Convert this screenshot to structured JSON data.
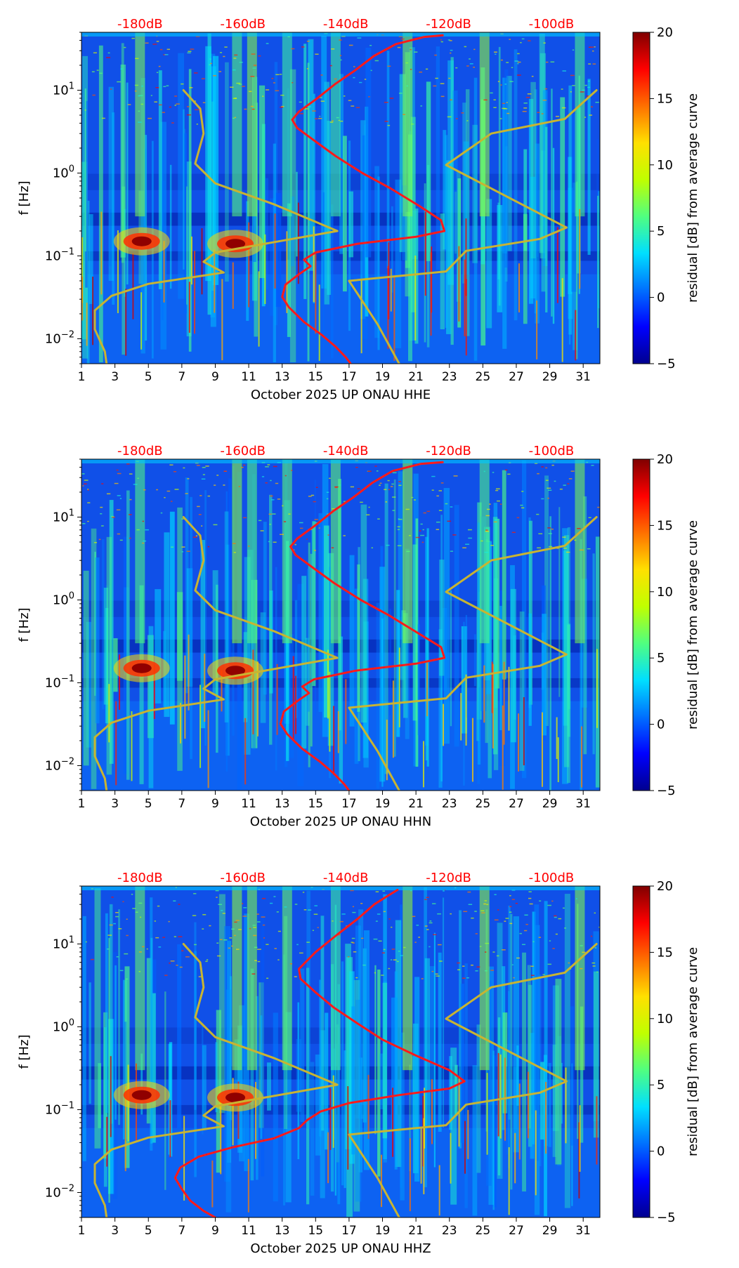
{
  "colors": {
    "cmap": [
      "#00008f",
      "#0000ff",
      "#0070ff",
      "#00dfff",
      "#50ff80",
      "#c0ff00",
      "#ffe000",
      "#ff7000",
      "#ff0000",
      "#800000"
    ],
    "background": "#1050e8",
    "median_curve": "#ff1a1a",
    "noise_model": "#c8b432",
    "top_labels": "#ff0000"
  },
  "chart_data": [
    {
      "type": "heatmap",
      "title": "",
      "xlabel": "October 2025 UP ONAU  HHE",
      "ylabel": "f [Hz]",
      "x_ticks": [
        "1",
        "3",
        "5",
        "7",
        "9",
        "11",
        "13",
        "15",
        "17",
        "19",
        "21",
        "23",
        "25",
        "27",
        "29",
        "31"
      ],
      "x_range_days": [
        1,
        32
      ],
      "y_scale": "log",
      "y_range_hz": [
        0.005,
        50
      ],
      "y_ticks": [
        {
          "value": 0.01,
          "base": "10",
          "exp": "−2"
        },
        {
          "value": 0.1,
          "base": "10",
          "exp": "−1"
        },
        {
          "value": 1,
          "base": "10",
          "exp": "0"
        },
        {
          "value": 10,
          "base": "10",
          "exp": "1"
        }
      ],
      "top_labels": [
        "-180dB",
        "-160dB",
        "-140dB",
        "-120dB",
        "-100dB"
      ],
      "colorbar": {
        "label": "residual [dB] from average curve",
        "range": [
          -5,
          20
        ],
        "ticks": [
          "20",
          "15",
          "10",
          "5",
          "0",
          "−5"
        ]
      },
      "features": {
        "hot_spots": [
          {
            "day": 4.6,
            "freq": 0.15
          },
          {
            "day": 10.2,
            "freq": 0.14
          }
        ],
        "vertical_bands": [
          4.5,
          10.3,
          11.2,
          13.3,
          16.2,
          20.5,
          25.1,
          30.8
        ]
      },
      "series": [
        {
          "name": "median PSD",
          "points": [
            [
              17.1,
              0.005
            ],
            [
              16.8,
              0.006
            ],
            [
              16.2,
              0.008
            ],
            [
              15.4,
              0.011
            ],
            [
              14.3,
              0.016
            ],
            [
              13.4,
              0.024
            ],
            [
              13.0,
              0.032
            ],
            [
              13.2,
              0.045
            ],
            [
              14.0,
              0.06
            ],
            [
              14.7,
              0.075
            ],
            [
              14.3,
              0.09
            ],
            [
              15.0,
              0.11
            ],
            [
              17.5,
              0.14
            ],
            [
              21.0,
              0.17
            ],
            [
              22.7,
              0.2
            ],
            [
              22.5,
              0.27
            ],
            [
              21.2,
              0.4
            ],
            [
              19.5,
              0.65
            ],
            [
              17.8,
              1.0
            ],
            [
              16.2,
              1.6
            ],
            [
              15.0,
              2.4
            ],
            [
              13.9,
              3.5
            ],
            [
              13.6,
              4.4
            ],
            [
              14.0,
              5.5
            ],
            [
              15.1,
              8
            ],
            [
              16.2,
              12
            ],
            [
              17.3,
              17
            ],
            [
              18.5,
              26
            ],
            [
              19.8,
              36
            ],
            [
              21.5,
              44
            ],
            [
              22.6,
              46
            ]
          ]
        },
        {
          "name": "NHNM",
          "points": [
            [
              20.0,
              0.005
            ],
            [
              18.7,
              0.015
            ],
            [
              17.0,
              0.05
            ],
            [
              22.8,
              0.065
            ],
            [
              24.0,
              0.115
            ],
            [
              28.4,
              0.16
            ],
            [
              30.0,
              0.22
            ],
            [
              22.8,
              1.25
            ],
            [
              25.5,
              3.0
            ],
            [
              29.9,
              4.5
            ],
            [
              31.8,
              10
            ]
          ]
        },
        {
          "name": "NLNM",
          "points": [
            [
              2.5,
              0.005
            ],
            [
              2.4,
              0.007
            ],
            [
              1.8,
              0.013
            ],
            [
              1.8,
              0.022
            ],
            [
              2.8,
              0.033
            ],
            [
              5.0,
              0.046
            ],
            [
              9.5,
              0.063
            ],
            [
              8.3,
              0.085
            ],
            [
              9.0,
              0.11
            ],
            [
              16.3,
              0.2
            ],
            [
              12.5,
              0.42
            ],
            [
              9.0,
              0.75
            ],
            [
              7.8,
              1.3
            ],
            [
              8.3,
              3.0
            ],
            [
              8.1,
              6.0
            ],
            [
              7.1,
              10
            ]
          ]
        }
      ]
    },
    {
      "type": "heatmap",
      "title": "",
      "xlabel": "October 2025 UP ONAU  HHN",
      "ylabel": "f [Hz]",
      "x_ticks": [
        "1",
        "3",
        "5",
        "7",
        "9",
        "11",
        "13",
        "15",
        "17",
        "19",
        "21",
        "23",
        "25",
        "27",
        "29",
        "31"
      ],
      "x_range_days": [
        1,
        32
      ],
      "y_scale": "log",
      "y_range_hz": [
        0.005,
        50
      ],
      "y_ticks": [
        {
          "value": 0.01,
          "base": "10",
          "exp": "−2"
        },
        {
          "value": 0.1,
          "base": "10",
          "exp": "−1"
        },
        {
          "value": 1,
          "base": "10",
          "exp": "0"
        },
        {
          "value": 10,
          "base": "10",
          "exp": "1"
        }
      ],
      "top_labels": [
        "-180dB",
        "-160dB",
        "-140dB",
        "-120dB",
        "-100dB"
      ],
      "colorbar": {
        "label": "residual [dB] from average curve",
        "range": [
          -5,
          20
        ],
        "ticks": [
          "20",
          "15",
          "10",
          "5",
          "0",
          "−5"
        ]
      },
      "features": {
        "hot_spots": [
          {
            "day": 4.6,
            "freq": 0.15
          },
          {
            "day": 10.2,
            "freq": 0.14
          }
        ],
        "vertical_bands": [
          4.5,
          10.3,
          11.2,
          13.3,
          16.2,
          20.5,
          25.1,
          30.8
        ]
      },
      "series": [
        {
          "name": "median PSD",
          "points": [
            [
              17.0,
              0.005
            ],
            [
              16.7,
              0.006
            ],
            [
              16.1,
              0.008
            ],
            [
              15.3,
              0.011
            ],
            [
              14.2,
              0.016
            ],
            [
              13.3,
              0.024
            ],
            [
              12.9,
              0.032
            ],
            [
              13.1,
              0.045
            ],
            [
              13.9,
              0.06
            ],
            [
              14.6,
              0.075
            ],
            [
              14.2,
              0.09
            ],
            [
              14.9,
              0.11
            ],
            [
              17.4,
              0.14
            ],
            [
              21.0,
              0.17
            ],
            [
              22.7,
              0.2
            ],
            [
              22.5,
              0.27
            ],
            [
              21.1,
              0.4
            ],
            [
              19.4,
              0.65
            ],
            [
              17.7,
              1.0
            ],
            [
              16.1,
              1.6
            ],
            [
              14.9,
              2.4
            ],
            [
              13.8,
              3.5
            ],
            [
              13.5,
              4.4
            ],
            [
              13.9,
              5.5
            ],
            [
              15.0,
              8
            ],
            [
              16.1,
              12
            ],
            [
              17.2,
              17
            ],
            [
              18.4,
              26
            ],
            [
              19.6,
              36
            ],
            [
              21.3,
              44
            ],
            [
              22.6,
              46
            ]
          ]
        },
        {
          "name": "NHNM",
          "points": [
            [
              20.0,
              0.005
            ],
            [
              18.7,
              0.015
            ],
            [
              17.0,
              0.05
            ],
            [
              22.8,
              0.065
            ],
            [
              24.0,
              0.115
            ],
            [
              28.4,
              0.16
            ],
            [
              30.0,
              0.22
            ],
            [
              22.8,
              1.25
            ],
            [
              25.5,
              3.0
            ],
            [
              29.9,
              4.5
            ],
            [
              31.8,
              10
            ]
          ]
        },
        {
          "name": "NLNM",
          "points": [
            [
              2.5,
              0.005
            ],
            [
              2.4,
              0.007
            ],
            [
              1.8,
              0.013
            ],
            [
              1.8,
              0.022
            ],
            [
              2.8,
              0.033
            ],
            [
              5.0,
              0.046
            ],
            [
              9.5,
              0.063
            ],
            [
              8.3,
              0.085
            ],
            [
              9.0,
              0.11
            ],
            [
              16.3,
              0.2
            ],
            [
              12.5,
              0.42
            ],
            [
              9.0,
              0.75
            ],
            [
              7.8,
              1.3
            ],
            [
              8.3,
              3.0
            ],
            [
              8.1,
              6.0
            ],
            [
              7.1,
              10
            ]
          ]
        }
      ]
    },
    {
      "type": "heatmap",
      "title": "",
      "xlabel": "October 2025 UP ONAU  HHZ",
      "ylabel": "f [Hz]",
      "x_ticks": [
        "1",
        "3",
        "5",
        "7",
        "9",
        "11",
        "13",
        "15",
        "17",
        "19",
        "21",
        "23",
        "25",
        "27",
        "29",
        "31"
      ],
      "x_range_days": [
        1,
        32
      ],
      "y_scale": "log",
      "y_range_hz": [
        0.005,
        50
      ],
      "y_ticks": [
        {
          "value": 0.01,
          "base": "10",
          "exp": "−2"
        },
        {
          "value": 0.1,
          "base": "10",
          "exp": "−1"
        },
        {
          "value": 1,
          "base": "10",
          "exp": "0"
        },
        {
          "value": 10,
          "base": "10",
          "exp": "1"
        }
      ],
      "top_labels": [
        "-180dB",
        "-160dB",
        "-140dB",
        "-120dB",
        "-100dB"
      ],
      "colorbar": {
        "label": "residual [dB] from average curve",
        "range": [
          -5,
          20
        ],
        "ticks": [
          "20",
          "15",
          "10",
          "5",
          "0",
          "−5"
        ]
      },
      "features": {
        "hot_spots": [
          {
            "day": 4.6,
            "freq": 0.15
          },
          {
            "day": 10.2,
            "freq": 0.14
          }
        ],
        "vertical_bands": [
          4.5,
          10.3,
          11.2,
          13.3,
          16.2,
          20.5,
          25.1,
          30.8
        ]
      },
      "series": [
        {
          "name": "median PSD",
          "points": [
            [
              9.0,
              0.005
            ],
            [
              8.3,
              0.006
            ],
            [
              7.5,
              0.008
            ],
            [
              7.0,
              0.011
            ],
            [
              6.6,
              0.015
            ],
            [
              6.9,
              0.02
            ],
            [
              8.0,
              0.027
            ],
            [
              10.0,
              0.035
            ],
            [
              12.5,
              0.045
            ],
            [
              14.0,
              0.06
            ],
            [
              14.5,
              0.075
            ],
            [
              15.3,
              0.095
            ],
            [
              17.0,
              0.12
            ],
            [
              20.0,
              0.15
            ],
            [
              23.0,
              0.18
            ],
            [
              23.9,
              0.22
            ],
            [
              23.0,
              0.3
            ],
            [
              21.0,
              0.45
            ],
            [
              19.0,
              0.7
            ],
            [
              17.5,
              1.1
            ],
            [
              16.1,
              1.7
            ],
            [
              15.0,
              2.6
            ],
            [
              14.1,
              3.8
            ],
            [
              14.0,
              5.0
            ],
            [
              15.0,
              8
            ],
            [
              16.3,
              13
            ],
            [
              17.5,
              20
            ],
            [
              18.5,
              30
            ],
            [
              19.3,
              38
            ],
            [
              19.9,
              45
            ]
          ]
        },
        {
          "name": "NHNM",
          "points": [
            [
              20.0,
              0.005
            ],
            [
              18.7,
              0.015
            ],
            [
              17.0,
              0.05
            ],
            [
              22.8,
              0.065
            ],
            [
              24.0,
              0.115
            ],
            [
              28.4,
              0.16
            ],
            [
              30.0,
              0.22
            ],
            [
              22.8,
              1.25
            ],
            [
              25.5,
              3.0
            ],
            [
              29.9,
              4.5
            ],
            [
              31.8,
              10
            ]
          ]
        },
        {
          "name": "NLNM",
          "points": [
            [
              2.5,
              0.005
            ],
            [
              2.4,
              0.007
            ],
            [
              1.8,
              0.013
            ],
            [
              1.8,
              0.022
            ],
            [
              2.8,
              0.033
            ],
            [
              5.0,
              0.046
            ],
            [
              9.5,
              0.063
            ],
            [
              8.3,
              0.085
            ],
            [
              9.0,
              0.11
            ],
            [
              16.3,
              0.2
            ],
            [
              12.5,
              0.42
            ],
            [
              9.0,
              0.75
            ],
            [
              7.8,
              1.3
            ],
            [
              8.3,
              3.0
            ],
            [
              8.1,
              6.0
            ],
            [
              7.1,
              10
            ]
          ]
        }
      ]
    }
  ]
}
